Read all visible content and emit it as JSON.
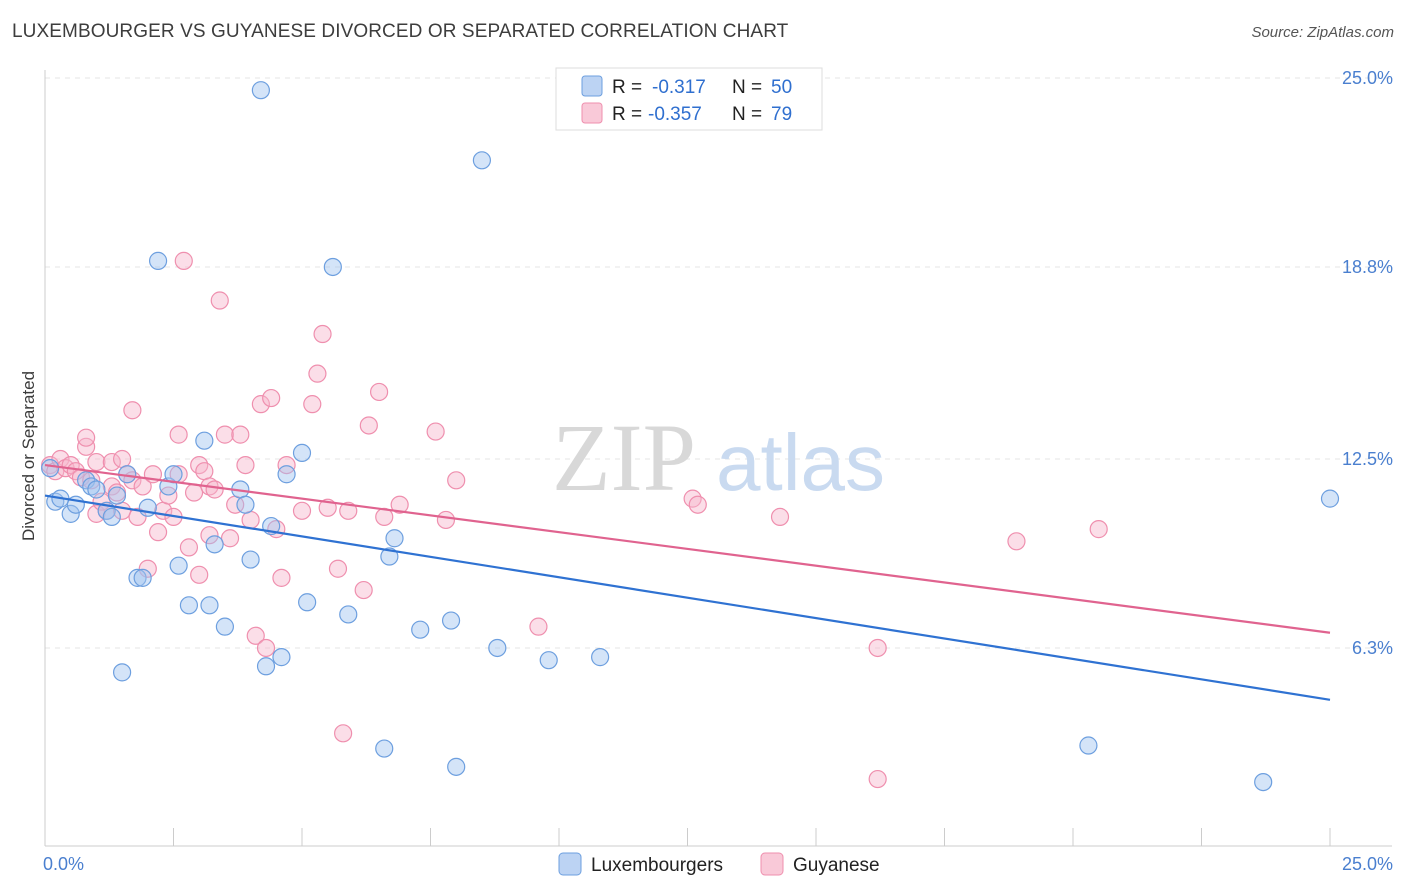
{
  "title": "LUXEMBOURGER VS GUYANESE DIVORCED OR SEPARATED CORRELATION CHART",
  "source": "Source: ZipAtlas.com",
  "watermark": {
    "zip": "ZIP",
    "atlas": "atlas"
  },
  "colors": {
    "blue": "#6d9fdf",
    "pink": "#ef8fae",
    "blue_line": "#2f72d2",
    "pink_line": "#e0638f",
    "tick": "#4a7fcf"
  },
  "legend": {
    "rows": [
      {
        "r_label": "R =",
        "r_value": "-0.317",
        "n_label": "N =",
        "n_value": "50"
      },
      {
        "r_label": "R =",
        "r_value": "-0.357",
        "n_label": "N =",
        "n_value": "79"
      }
    ]
  },
  "chart_data": {
    "type": "scatter",
    "ylabel": "Divorced or Separated",
    "x_tick_labels": [
      "0.0%",
      "25.0%"
    ],
    "y_tick_labels": [
      "25.0%",
      "18.8%",
      "12.5%",
      "6.3%"
    ],
    "xlim": [
      0,
      25
    ],
    "ylim": [
      0,
      26
    ],
    "y_ticks": [
      25.0,
      18.8,
      12.5,
      6.3
    ],
    "grid": true,
    "legend_position": "top-center",
    "series": [
      {
        "name": "Luxembourgers",
        "trend": {
          "x0": 0,
          "y0": 11.3,
          "x1": 25,
          "y1": 4.6
        },
        "points": [
          [
            0.1,
            12.2
          ],
          [
            0.2,
            11.1
          ],
          [
            0.3,
            11.2
          ],
          [
            0.5,
            10.7
          ],
          [
            0.6,
            11.0
          ],
          [
            0.8,
            11.8
          ],
          [
            0.9,
            11.6
          ],
          [
            1.0,
            11.5
          ],
          [
            1.2,
            10.8
          ],
          [
            1.3,
            10.6
          ],
          [
            1.4,
            11.3
          ],
          [
            1.6,
            12.0
          ],
          [
            1.8,
            8.6
          ],
          [
            1.9,
            8.6
          ],
          [
            2.0,
            10.9
          ],
          [
            2.2,
            19.0
          ],
          [
            2.4,
            11.6
          ],
          [
            2.5,
            12.0
          ],
          [
            2.6,
            9.0
          ],
          [
            2.8,
            7.7
          ],
          [
            3.1,
            13.1
          ],
          [
            3.2,
            7.7
          ],
          [
            3.3,
            9.7
          ],
          [
            3.5,
            7.0
          ],
          [
            3.8,
            11.5
          ],
          [
            3.9,
            11.0
          ],
          [
            4.0,
            9.2
          ],
          [
            4.2,
            24.6
          ],
          [
            4.3,
            5.7
          ],
          [
            4.4,
            10.3
          ],
          [
            4.6,
            6.0
          ],
          [
            4.7,
            12.0
          ],
          [
            5.0,
            12.7
          ],
          [
            5.1,
            7.8
          ],
          [
            5.6,
            18.8
          ],
          [
            5.9,
            7.4
          ],
          [
            6.6,
            3.0
          ],
          [
            6.7,
            9.3
          ],
          [
            6.8,
            9.9
          ],
          [
            7.3,
            6.9
          ],
          [
            7.9,
            7.2
          ],
          [
            8.0,
            2.4
          ],
          [
            8.5,
            22.3
          ],
          [
            8.8,
            6.3
          ],
          [
            9.8,
            5.9
          ],
          [
            10.8,
            6.0
          ],
          [
            1.5,
            5.5
          ],
          [
            20.3,
            3.1
          ],
          [
            23.7,
            1.9
          ],
          [
            25.0,
            11.2
          ]
        ]
      },
      {
        "name": "Guyanese",
        "trend": {
          "x0": 0,
          "y0": 12.3,
          "x1": 25,
          "y1": 6.8
        },
        "points": [
          [
            0.1,
            12.3
          ],
          [
            0.2,
            12.1
          ],
          [
            0.3,
            12.5
          ],
          [
            0.4,
            12.2
          ],
          [
            0.5,
            12.3
          ],
          [
            0.6,
            12.1
          ],
          [
            0.7,
            11.9
          ],
          [
            0.8,
            12.9
          ],
          [
            0.8,
            13.2
          ],
          [
            0.9,
            11.8
          ],
          [
            1.0,
            12.4
          ],
          [
            1.0,
            10.7
          ],
          [
            1.1,
            11.1
          ],
          [
            1.2,
            10.8
          ],
          [
            1.3,
            12.4
          ],
          [
            1.3,
            11.6
          ],
          [
            1.4,
            11.4
          ],
          [
            1.5,
            10.8
          ],
          [
            1.5,
            12.5
          ],
          [
            1.6,
            12.0
          ],
          [
            1.7,
            11.8
          ],
          [
            1.7,
            14.1
          ],
          [
            1.8,
            10.6
          ],
          [
            1.9,
            11.6
          ],
          [
            2.0,
            8.9
          ],
          [
            2.1,
            12.0
          ],
          [
            2.2,
            10.1
          ],
          [
            2.3,
            10.8
          ],
          [
            2.4,
            11.3
          ],
          [
            2.5,
            10.6
          ],
          [
            2.6,
            12.0
          ],
          [
            2.6,
            13.3
          ],
          [
            2.7,
            19.0
          ],
          [
            2.8,
            9.6
          ],
          [
            2.9,
            11.4
          ],
          [
            3.0,
            12.3
          ],
          [
            3.0,
            8.7
          ],
          [
            3.1,
            12.1
          ],
          [
            3.2,
            11.6
          ],
          [
            3.2,
            10.0
          ],
          [
            3.3,
            11.5
          ],
          [
            3.4,
            17.7
          ],
          [
            3.5,
            13.3
          ],
          [
            3.6,
            9.9
          ],
          [
            3.7,
            11.0
          ],
          [
            3.8,
            13.3
          ],
          [
            3.9,
            12.3
          ],
          [
            4.0,
            10.5
          ],
          [
            4.1,
            6.7
          ],
          [
            4.2,
            14.3
          ],
          [
            4.3,
            6.3
          ],
          [
            4.4,
            14.5
          ],
          [
            4.5,
            10.2
          ],
          [
            4.6,
            8.6
          ],
          [
            4.7,
            12.3
          ],
          [
            5.0,
            10.8
          ],
          [
            5.2,
            14.3
          ],
          [
            5.3,
            15.3
          ],
          [
            5.4,
            16.6
          ],
          [
            5.5,
            10.9
          ],
          [
            5.7,
            8.9
          ],
          [
            5.8,
            3.5
          ],
          [
            5.9,
            10.8
          ],
          [
            6.2,
            8.2
          ],
          [
            6.3,
            13.6
          ],
          [
            6.5,
            14.7
          ],
          [
            6.6,
            10.6
          ],
          [
            6.9,
            11.0
          ],
          [
            7.6,
            13.4
          ],
          [
            7.8,
            10.5
          ],
          [
            8.0,
            11.8
          ],
          [
            9.6,
            7.0
          ],
          [
            12.6,
            11.2
          ],
          [
            12.7,
            11.0
          ],
          [
            14.3,
            10.6
          ],
          [
            16.2,
            6.3
          ],
          [
            16.2,
            2.0
          ],
          [
            18.9,
            9.8
          ],
          [
            20.5,
            10.2
          ]
        ]
      }
    ]
  }
}
